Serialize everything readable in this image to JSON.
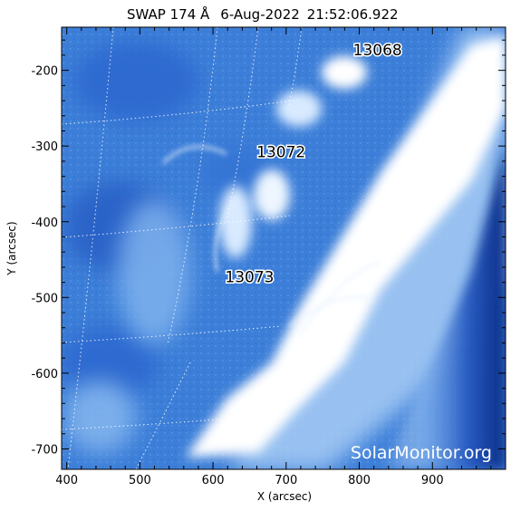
{
  "title": {
    "instrument": "SWAP 174 Å",
    "date": "6-Aug-2022",
    "time": "21:52:06.922"
  },
  "axes": {
    "x_label": "X (arcsec)",
    "y_label": "Y (arcsec)",
    "x_ticks": [
      "400",
      "500",
      "600",
      "700",
      "800",
      "900"
    ],
    "y_ticks": [
      "-200",
      "-300",
      "-400",
      "-500",
      "-600",
      "-700"
    ],
    "x_tick_values": [
      400,
      500,
      600,
      700,
      800,
      900
    ],
    "y_tick_values": [
      -200,
      -300,
      -400,
      -500,
      -600,
      -700
    ],
    "x_range": [
      393,
      1000
    ],
    "y_range": [
      -727,
      -143
    ]
  },
  "active_regions": [
    {
      "label": "13068",
      "x": 825,
      "y": -180
    },
    {
      "label": "13072",
      "x": 693,
      "y": -315
    },
    {
      "label": "13073",
      "x": 650,
      "y": -480
    }
  ],
  "watermark": "SolarMonitor.org",
  "colors": {
    "background_blue": "#3d7fd8",
    "deep_blue": "#1f5ec2",
    "limb_blue": "#0b2f8a",
    "bright": "#ffffff"
  }
}
